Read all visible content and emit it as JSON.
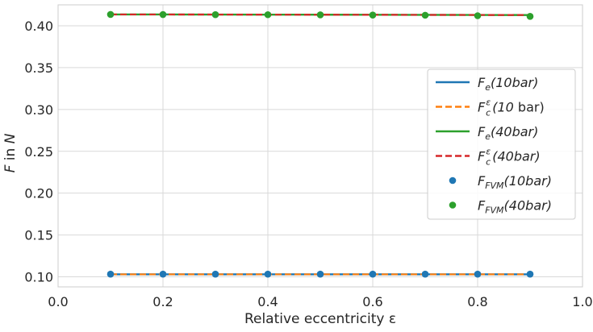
{
  "chart_data": {
    "type": "line",
    "xlabel": "Relative eccentricity ε",
    "ylabel_parts": [
      "F",
      " in ",
      "N"
    ],
    "xlim": [
      0.0,
      1.0
    ],
    "ylim": [
      0.088,
      0.425
    ],
    "xticks": [
      0.0,
      0.2,
      0.4,
      0.6,
      0.8,
      1.0
    ],
    "yticks": [
      0.1,
      0.15,
      0.2,
      0.25,
      0.3,
      0.35,
      0.4
    ],
    "xtick_labels": [
      "0.0",
      "0.2",
      "0.4",
      "0.6",
      "0.8",
      "1.0"
    ],
    "ytick_labels": [
      "0.10",
      "0.15",
      "0.20",
      "0.25",
      "0.30",
      "0.35",
      "0.40"
    ],
    "grid": true,
    "legend_position": "right",
    "x": [
      0.1,
      0.2,
      0.3,
      0.4,
      0.5,
      0.6,
      0.7,
      0.8,
      0.9
    ],
    "series": [
      {
        "label_main": "F",
        "label_sub": "e",
        "label_sup": "",
        "label_rest": "(10",
        "label_tail": "bar)",
        "tail_upright": false,
        "kind": "line",
        "style": "solid",
        "color": "#1f77b4",
        "values": [
          0.103,
          0.103,
          0.103,
          0.103,
          0.103,
          0.103,
          0.103,
          0.103,
          0.103
        ]
      },
      {
        "label_main": "F",
        "label_sub": "c",
        "label_sup": "ε",
        "label_rest": "(10",
        "label_tail": " bar)",
        "tail_upright": true,
        "kind": "line",
        "style": "dashed",
        "color": "#ff7f0e",
        "values": [
          0.103,
          0.103,
          0.103,
          0.103,
          0.103,
          0.103,
          0.103,
          0.103,
          0.103
        ]
      },
      {
        "label_main": "F",
        "label_sub": "e",
        "label_sup": "",
        "label_rest": "(40",
        "label_tail": "bar)",
        "tail_upright": false,
        "kind": "line",
        "style": "solid",
        "color": "#2ca02c",
        "values": [
          0.4135,
          0.4135,
          0.4134,
          0.4133,
          0.4132,
          0.4131,
          0.413,
          0.4129,
          0.4128
        ]
      },
      {
        "label_main": "F",
        "label_sub": "c",
        "label_sup": "ε",
        "label_rest": "(40",
        "label_tail": "bar)",
        "tail_upright": false,
        "kind": "line",
        "style": "dashed",
        "color": "#d62728",
        "values": [
          0.4135,
          0.4135,
          0.4134,
          0.4133,
          0.4132,
          0.4131,
          0.413,
          0.4129,
          0.4128
        ]
      },
      {
        "label_main": "F",
        "label_sub": "FVM",
        "label_sup": "",
        "label_rest": "(10",
        "label_tail": "bar)",
        "tail_upright": false,
        "kind": "scatter",
        "style": "marker",
        "color": "#1f77b4",
        "values": [
          0.1032,
          0.1032,
          0.1032,
          0.1032,
          0.1032,
          0.1032,
          0.1032,
          0.1032,
          0.1032
        ]
      },
      {
        "label_main": "F",
        "label_sub": "FVM",
        "label_sup": "",
        "label_rest": "(40",
        "label_tail": "bar)",
        "tail_upright": false,
        "kind": "scatter",
        "style": "marker",
        "color": "#2ca02c",
        "values": [
          0.4135,
          0.4134,
          0.4133,
          0.4132,
          0.413,
          0.4128,
          0.4126,
          0.412,
          0.4112
        ]
      }
    ]
  }
}
